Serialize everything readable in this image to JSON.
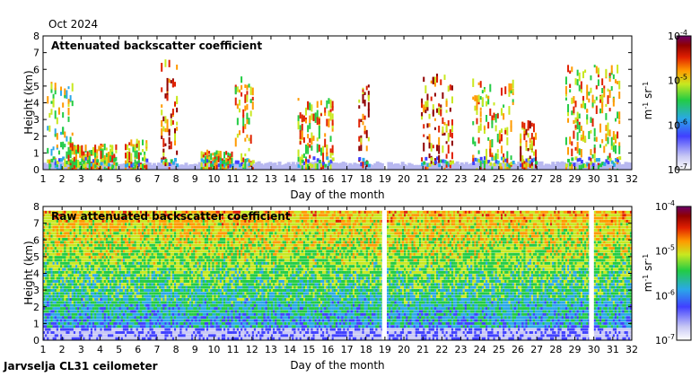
{
  "header": {
    "period": "Oct 2024"
  },
  "footer": {
    "instrument": "Jarvselja CL31 ceilometer"
  },
  "chart_data": [
    {
      "type": "heatmap",
      "title": "Attenuated backscatter coefficient",
      "xlabel": "Day of the month",
      "ylabel": "Height (km)",
      "xlim": [
        1,
        32
      ],
      "ylim": [
        0,
        8
      ],
      "xticks": [
        1,
        2,
        3,
        4,
        5,
        6,
        7,
        8,
        9,
        10,
        11,
        12,
        13,
        14,
        15,
        16,
        17,
        18,
        19,
        20,
        21,
        22,
        23,
        24,
        25,
        26,
        27,
        28,
        29,
        30,
        31,
        32
      ],
      "yticks": [
        0,
        1,
        2,
        3,
        4,
        5,
        6,
        7,
        8
      ],
      "colorbar": {
        "scale": "log",
        "min": "10^-7",
        "max": "10^-4",
        "ticks": [
          "10^-4",
          "10^-5",
          "10^-6",
          "10^-7"
        ],
        "unit": "m-1 sr-1"
      },
      "data_gaps": [
        [
          18.85,
          19.0
        ]
      ],
      "features": [
        {
          "day_start": 1.2,
          "day_end": 2.6,
          "height_top_km": 5.3,
          "level": "medium"
        },
        {
          "day_start": 2.3,
          "day_end": 4.8,
          "height_top_km": 1.6,
          "level": "high"
        },
        {
          "day_start": 5.3,
          "day_end": 6.4,
          "height_top_km": 1.9,
          "level": "high"
        },
        {
          "day_start": 7.2,
          "day_end": 8.0,
          "height_top_km": 6.6,
          "level": "very high"
        },
        {
          "day_start": 9.3,
          "day_end": 10.9,
          "height_top_km": 1.2,
          "level": "high"
        },
        {
          "day_start": 11.1,
          "day_end": 12.0,
          "height_top_km": 5.7,
          "level": "high"
        },
        {
          "day_start": 14.4,
          "day_end": 16.2,
          "height_top_km": 4.3,
          "level": "high"
        },
        {
          "day_start": 17.6,
          "day_end": 18.2,
          "height_top_km": 5.2,
          "level": "very high"
        },
        {
          "day_start": 20.9,
          "day_end": 22.6,
          "height_top_km": 5.8,
          "level": "very high"
        },
        {
          "day_start": 23.6,
          "day_end": 25.8,
          "height_top_km": 5.6,
          "level": "high"
        },
        {
          "day_start": 26.1,
          "day_end": 27.0,
          "height_top_km": 3.0,
          "level": "very high"
        },
        {
          "day_start": 28.5,
          "day_end": 31.4,
          "height_top_km": 6.3,
          "level": "high"
        }
      ]
    },
    {
      "type": "heatmap",
      "title": "Raw attenuated backscatter coefficient",
      "xlabel": "Day of the month",
      "ylabel": "Height (km)",
      "xlim": [
        1,
        32
      ],
      "ylim": [
        0,
        8
      ],
      "xticks": [
        1,
        2,
        3,
        4,
        5,
        6,
        7,
        8,
        9,
        10,
        11,
        12,
        13,
        14,
        15,
        16,
        17,
        18,
        19,
        20,
        21,
        22,
        23,
        24,
        25,
        26,
        27,
        28,
        29,
        30,
        31,
        32
      ],
      "yticks": [
        0,
        1,
        2,
        3,
        4,
        5,
        6,
        7,
        8
      ],
      "colorbar": {
        "scale": "log",
        "min": "10^-7",
        "max": "10^-4",
        "ticks": [
          "10^-4",
          "10^-5",
          "10^-6",
          "10^-7"
        ],
        "unit": "m-1 sr-1"
      },
      "data_gaps": [
        [
          18.85,
          19.05
        ],
        [
          29.75,
          30.0
        ]
      ],
      "data_top_km": 7.7
    }
  ]
}
